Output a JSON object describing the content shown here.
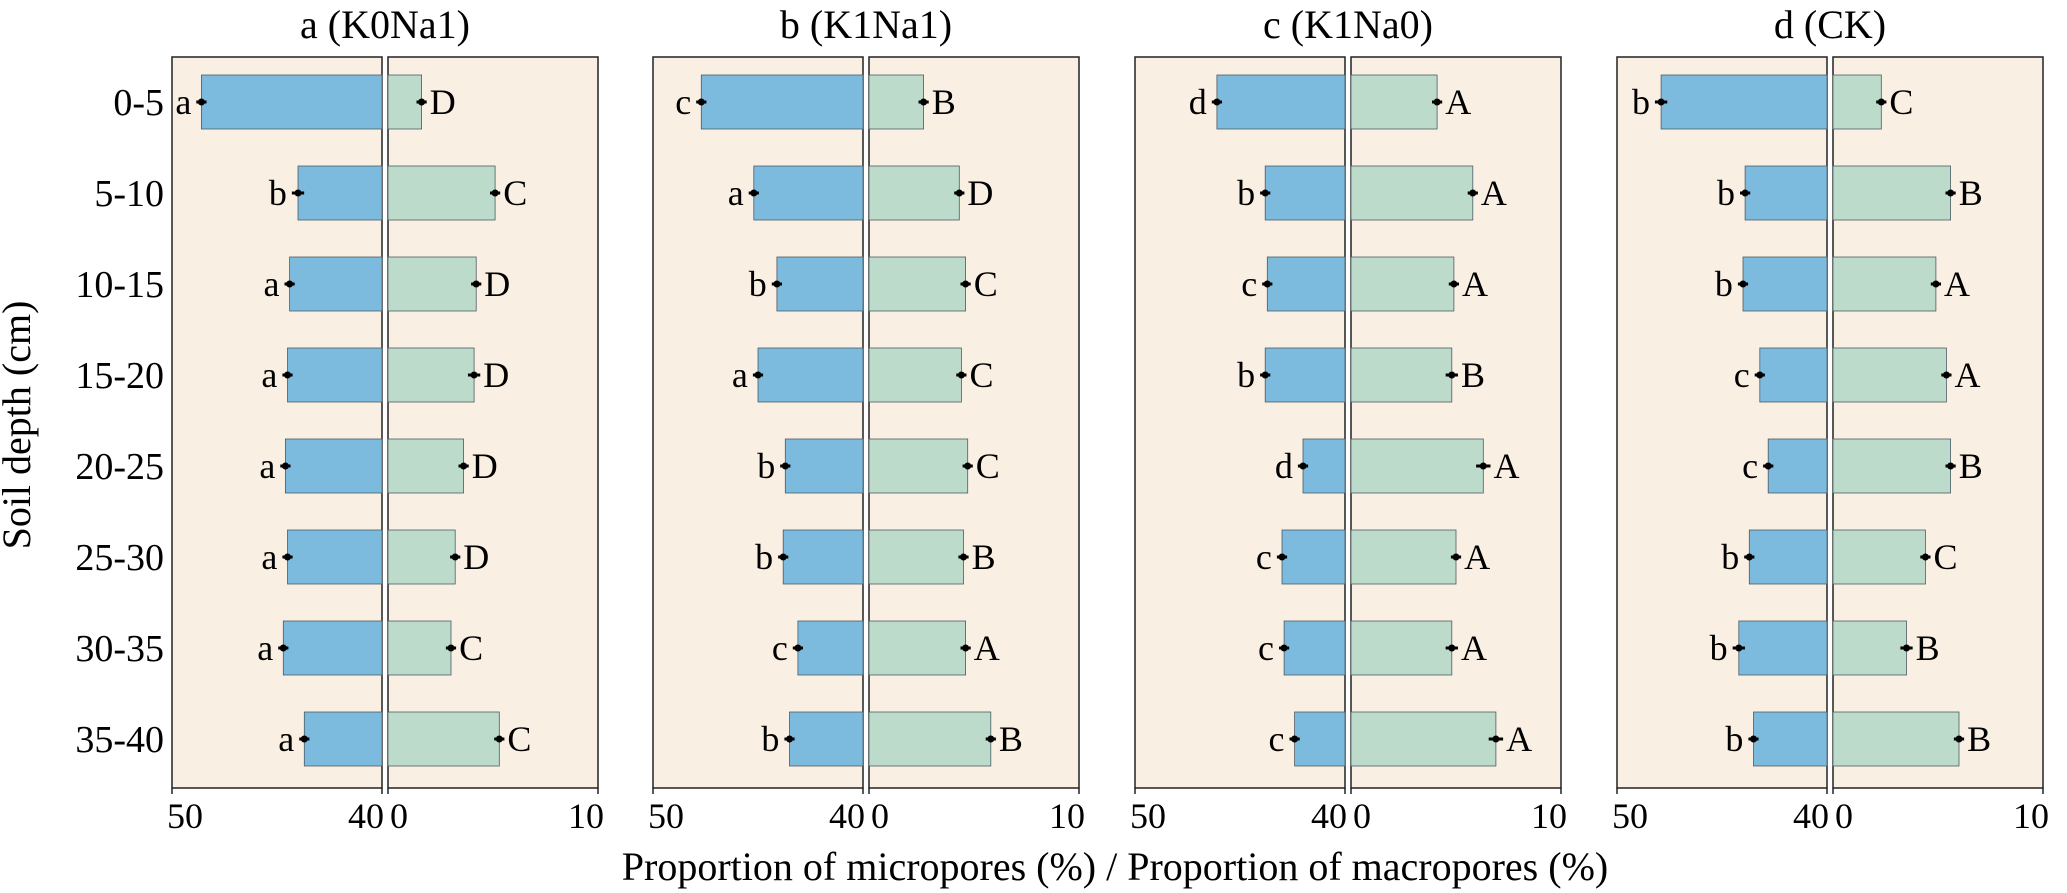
{
  "ylabel": "Soil depth (cm)",
  "xlabel": "Proportion of micropores (%) / Proportion of macropores (%)",
  "categories": [
    "0-5",
    "5-10",
    "10-15",
    "15-20",
    "20-25",
    "25-30",
    "30-35",
    "35-40"
  ],
  "colors": {
    "panel_bg": "#faefe3",
    "micro_fill": "#7cbbdd",
    "macro_fill": "#bcdbcb",
    "bar_edge": "#4d5b66",
    "frame": "#222222"
  },
  "chart_data": [
    {
      "type": "bar",
      "title": "a (K0Na1)",
      "micro_axis": {
        "ticks": [
          50,
          40
        ],
        "xlim": [
          50,
          40
        ]
      },
      "macro_axis": {
        "ticks": [
          0,
          10
        ],
        "xlim": [
          0,
          10
        ]
      },
      "series": [
        {
          "name": "Proportion of micropores (%)",
          "values": [
            48.6,
            44.0,
            44.4,
            44.5,
            44.6,
            44.5,
            44.7,
            43.7
          ],
          "error": [
            0.1,
            0.15,
            0.1,
            0.1,
            0.1,
            0.1,
            0.1,
            0.1
          ],
          "labels": [
            "a",
            "b",
            "a",
            "a",
            "a",
            "a",
            "a",
            "a"
          ]
        },
        {
          "name": "Proportion of macropores (%)",
          "values": [
            1.6,
            5.1,
            4.2,
            4.1,
            3.6,
            3.2,
            3.0,
            5.3
          ],
          "error": [
            0.1,
            0.1,
            0.1,
            0.15,
            0.1,
            0.1,
            0.1,
            0.1
          ],
          "labels": [
            "D",
            "C",
            "D",
            "D",
            "D",
            "D",
            "C",
            "C"
          ]
        }
      ]
    },
    {
      "type": "bar",
      "title": "b (K1Na1)",
      "micro_axis": {
        "ticks": [
          50,
          40
        ],
        "xlim": [
          50,
          40
        ]
      },
      "macro_axis": {
        "ticks": [
          0,
          10
        ],
        "xlim": [
          0,
          10
        ]
      },
      "series": [
        {
          "name": "Proportion of micropores (%)",
          "values": [
            47.7,
            45.2,
            44.1,
            45.0,
            43.7,
            43.8,
            43.1,
            43.5
          ],
          "error": [
            0.1,
            0.1,
            0.1,
            0.1,
            0.1,
            0.1,
            0.1,
            0.1
          ],
          "labels": [
            "c",
            "a",
            "b",
            "a",
            "b",
            "b",
            "c",
            "b"
          ]
        },
        {
          "name": "Proportion of macropores (%)",
          "values": [
            2.6,
            4.3,
            4.6,
            4.4,
            4.7,
            4.5,
            4.6,
            5.8
          ],
          "error": [
            0.1,
            0.1,
            0.1,
            0.1,
            0.1,
            0.1,
            0.1,
            0.1
          ],
          "labels": [
            "B",
            "D",
            "C",
            "C",
            "C",
            "B",
            "A",
            "B"
          ]
        }
      ]
    },
    {
      "type": "bar",
      "title": "c (K1Na0)",
      "micro_axis": {
        "ticks": [
          50,
          40
        ],
        "xlim": [
          50,
          40
        ]
      },
      "macro_axis": {
        "ticks": [
          0,
          10
        ],
        "xlim": [
          0,
          10
        ]
      },
      "series": [
        {
          "name": "Proportion of micropores (%)",
          "values": [
            46.1,
            43.8,
            43.7,
            43.8,
            42.0,
            43.0,
            42.9,
            42.4
          ],
          "error": [
            0.1,
            0.1,
            0.1,
            0.1,
            0.1,
            0.1,
            0.1,
            0.1
          ],
          "labels": [
            "d",
            "b",
            "c",
            "b",
            "d",
            "c",
            "c",
            "c"
          ]
        },
        {
          "name": "Proportion of macropores (%)",
          "values": [
            4.1,
            5.8,
            4.9,
            4.8,
            6.3,
            5.0,
            4.8,
            6.9
          ],
          "error": [
            0.1,
            0.1,
            0.1,
            0.15,
            0.2,
            0.1,
            0.15,
            0.2
          ],
          "labels": [
            "A",
            "A",
            "A",
            "B",
            "A",
            "A",
            "A",
            "A"
          ]
        }
      ]
    },
    {
      "type": "bar",
      "title": "d (CK)",
      "micro_axis": {
        "ticks": [
          50,
          40
        ],
        "xlim": [
          50,
          40
        ]
      },
      "macro_axis": {
        "ticks": [
          0,
          10
        ],
        "xlim": [
          0,
          10
        ]
      },
      "series": [
        {
          "name": "Proportion of micropores (%)",
          "values": [
            47.9,
            43.9,
            44.0,
            43.2,
            42.8,
            43.7,
            44.2,
            43.5
          ],
          "error": [
            0.15,
            0.1,
            0.1,
            0.1,
            0.1,
            0.1,
            0.15,
            0.1
          ],
          "labels": [
            "b",
            "b",
            "b",
            "c",
            "c",
            "b",
            "b",
            "b"
          ]
        },
        {
          "name": "Proportion of macropores (%)",
          "values": [
            2.3,
            5.6,
            4.9,
            5.4,
            5.6,
            4.4,
            3.5,
            6.0
          ],
          "error": [
            0.1,
            0.1,
            0.1,
            0.1,
            0.1,
            0.1,
            0.15,
            0.1
          ],
          "labels": [
            "C",
            "B",
            "A",
            "A",
            "B",
            "C",
            "B",
            "B"
          ]
        }
      ]
    }
  ]
}
